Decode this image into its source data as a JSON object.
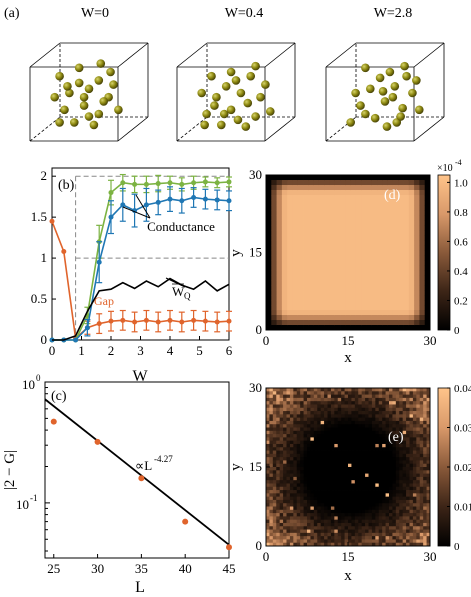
{
  "panel_a": {
    "label": "(a)",
    "titles": [
      "W=0",
      "W=0.4",
      "W=2.8"
    ],
    "colors": {
      "sphere": "#8f8a12",
      "sphere_hi": "#d6d36a"
    }
  },
  "chart_data": [
    {
      "id": "b",
      "type": "line",
      "panel_label": "(b)",
      "xlabel": "W",
      "ylabel": "",
      "xlim": [
        0,
        6
      ],
      "ylim": [
        0,
        2.1
      ],
      "xticks": [
        0,
        1,
        2,
        3,
        4,
        5,
        6
      ],
      "yticks": [
        0,
        0.5,
        1,
        1.5,
        2
      ],
      "ytick_labels": [
        "0",
        "0.5",
        "1",
        "1.5",
        "2"
      ],
      "reference_lines": {
        "y": [
          1,
          2
        ],
        "x": 0.8
      },
      "series": [
        {
          "name": "Gap",
          "color": "#e0642c",
          "x": [
            0,
            0.4,
            0.8,
            1.2,
            1.6,
            2.0,
            2.4,
            2.8,
            3.2,
            3.6,
            4.0,
            4.4,
            4.8,
            5.2,
            5.6,
            6.0
          ],
          "y": [
            1.45,
            1.08,
            0.02,
            0.15,
            0.2,
            0.23,
            0.24,
            0.22,
            0.24,
            0.22,
            0.24,
            0.22,
            0.24,
            0.23,
            0.22,
            0.23
          ],
          "err": [
            0,
            0,
            0,
            0.08,
            0.12,
            0.12,
            0.12,
            0.12,
            0.12,
            0.12,
            0.12,
            0.12,
            0.12,
            0.12,
            0.12,
            0.12
          ]
        },
        {
          "color": "#7cb342",
          "x": [
            0,
            0.4,
            0.8,
            1.2,
            1.6,
            2.0,
            2.4,
            2.8,
            3.2,
            3.6,
            4.0,
            4.4,
            4.8,
            5.2,
            5.6,
            6.0
          ],
          "y": [
            0,
            0,
            0,
            0.3,
            1.2,
            1.8,
            1.92,
            1.9,
            1.9,
            1.91,
            1.92,
            1.9,
            1.92,
            1.93,
            1.92,
            1.93
          ],
          "err": [
            0,
            0,
            0,
            0.1,
            0.2,
            0.15,
            0.1,
            0.1,
            0.1,
            0.1,
            0.08,
            0.08,
            0.08,
            0.06,
            0.06,
            0.06
          ]
        },
        {
          "color": "#1f77b4",
          "x": [
            0,
            0.4,
            0.8,
            1.2,
            1.6,
            2.0,
            2.4,
            2.8,
            3.2,
            3.6,
            4.0,
            4.4,
            4.8,
            5.2,
            5.6,
            6.0
          ],
          "y": [
            0,
            0,
            0,
            0.15,
            0.95,
            1.5,
            1.65,
            1.58,
            1.65,
            1.68,
            1.72,
            1.7,
            1.74,
            1.72,
            1.71,
            1.7
          ],
          "err": [
            0,
            0,
            0,
            0.1,
            0.25,
            0.2,
            0.2,
            0.2,
            0.2,
            0.15,
            0.15,
            0.15,
            0.12,
            0.12,
            0.12,
            0.12
          ]
        },
        {
          "color": "#000000",
          "x": [
            0,
            0.4,
            0.8,
            1.2,
            1.6,
            2.0,
            2.4,
            2.8,
            3.2,
            3.6,
            4.0,
            4.4,
            4.8,
            5.2,
            5.6,
            6.0
          ],
          "y": [
            0,
            0,
            0.05,
            0.35,
            0.6,
            0.62,
            0.7,
            0.63,
            0.72,
            0.65,
            0.75,
            0.67,
            0.62,
            0.72,
            0.6,
            0.68
          ]
        }
      ],
      "annotations": {
        "conductance": "Conductance",
        "wq": "W",
        "wq_sub": "Q",
        "gap": "Gap"
      }
    },
    {
      "id": "c",
      "type": "scatter",
      "panel_label": "(c)",
      "xlabel": "L",
      "ylabel": "|2 − G|",
      "log_y": true,
      "xlim": [
        24,
        45
      ],
      "ylim": [
        0.035,
        1
      ],
      "xticks": [
        25,
        30,
        35,
        40,
        45
      ],
      "ytick_labels": {
        "top": "10",
        "top_exp": "0",
        "mid": "10",
        "mid_exp": "-1"
      },
      "points": {
        "x": [
          25,
          30,
          35,
          40,
          45
        ],
        "y": [
          0.47,
          0.32,
          0.16,
          0.07,
          0.043
        ]
      },
      "fit": {
        "x": [
          24,
          45
        ],
        "y": [
          0.72,
          0.045
        ],
        "label": "∝L",
        "label_exp": "-4.27"
      },
      "colors": {
        "points": "#e0642c",
        "fit": "#000000"
      }
    },
    {
      "id": "d",
      "type": "heatmap",
      "panel_label": "(d)",
      "xlabel": "x",
      "ylabel": "y",
      "xticks": [
        0,
        15,
        30
      ],
      "yticks": [
        0,
        15,
        30
      ],
      "colorbar": {
        "ticks": [
          "0",
          "0.2",
          "0.4",
          "0.6",
          "0.8"
        ],
        "max": "1.0",
        "scale_label": "×10",
        "scale_exp": "-4"
      },
      "colors": {
        "low": "#000000",
        "high": "#ffc48a"
      }
    },
    {
      "id": "e",
      "type": "heatmap",
      "panel_label": "(e)",
      "xlabel": "x",
      "ylabel": "y",
      "xticks": [
        0,
        15,
        30
      ],
      "yticks": [
        0,
        15,
        30
      ],
      "colorbar": {
        "ticks": [
          "0",
          "0.01",
          "0.02",
          "0.03",
          "0.04"
        ]
      },
      "colors": {
        "low": "#000000",
        "high": "#ffc48a"
      }
    }
  ]
}
